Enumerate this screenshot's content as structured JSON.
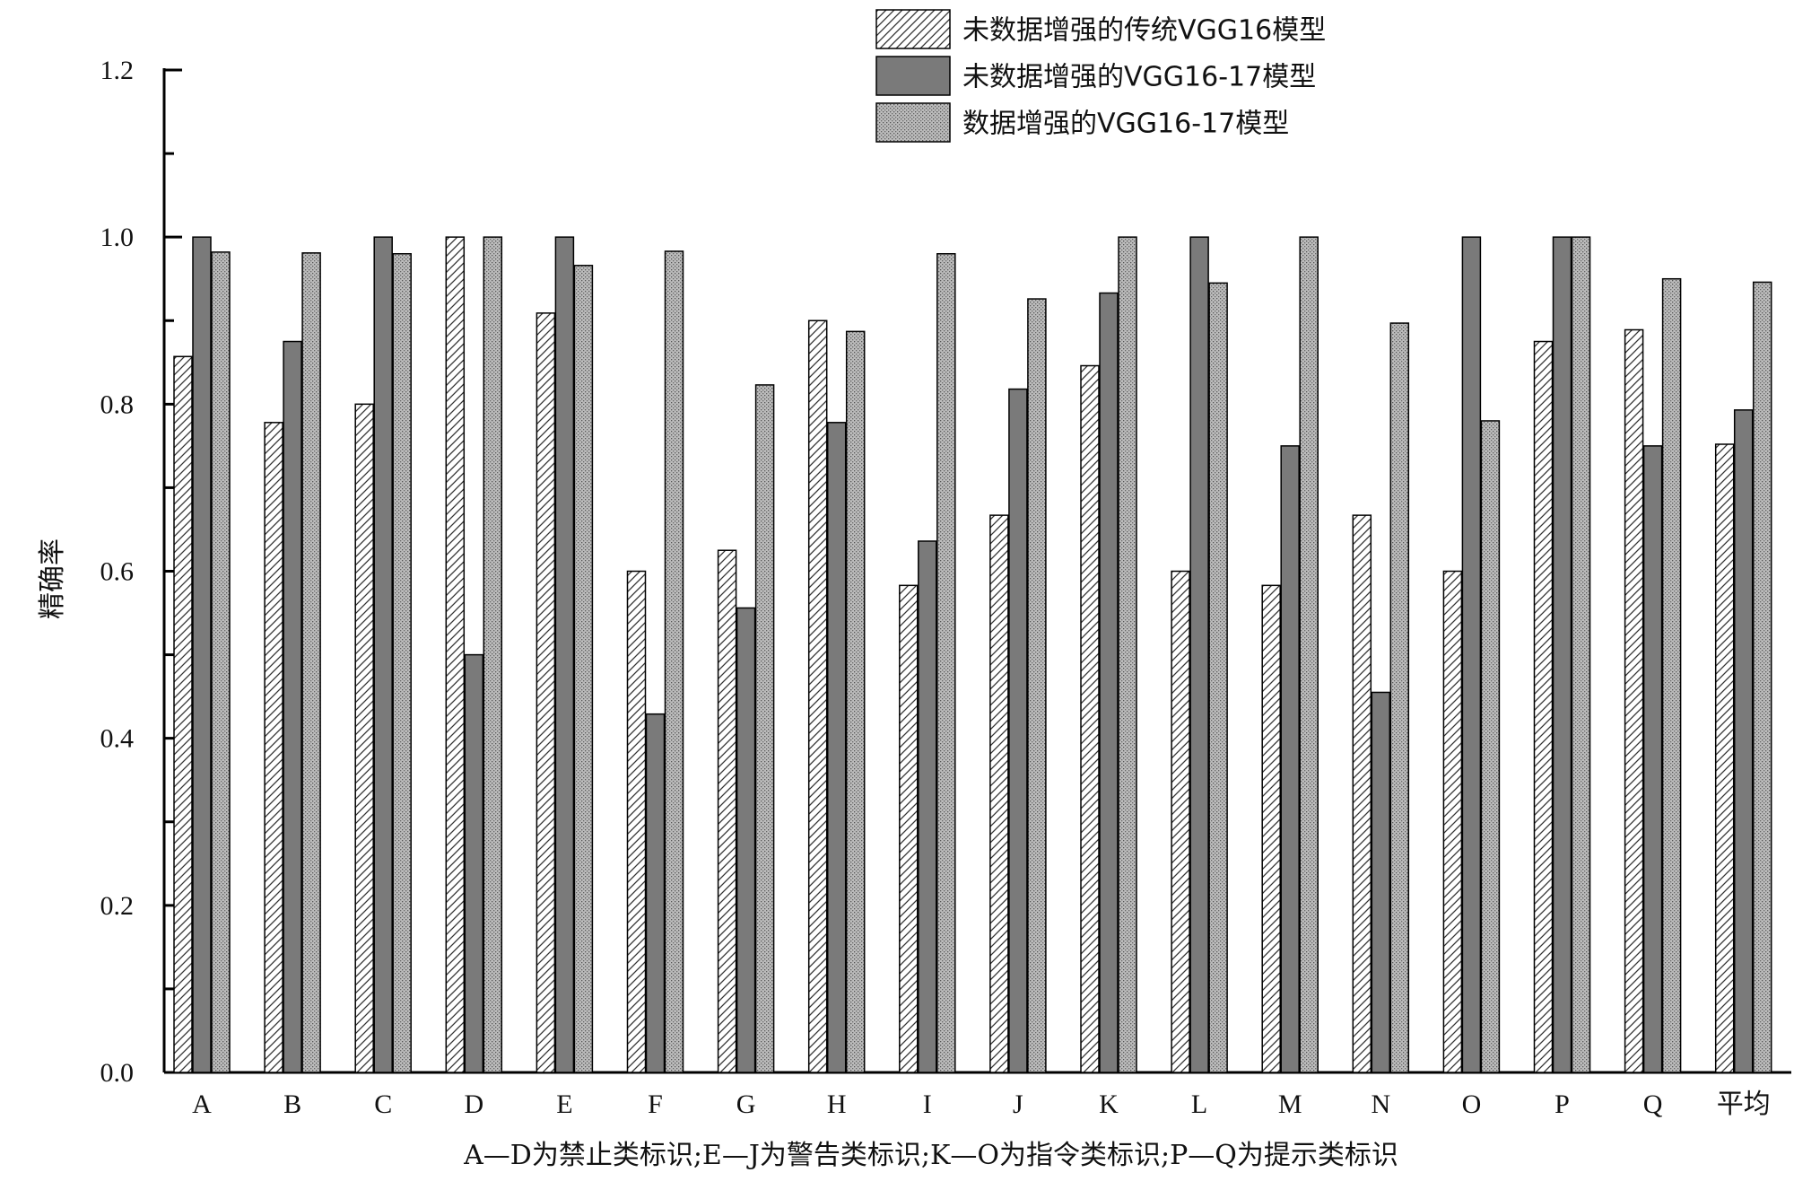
{
  "chart_data": {
    "type": "bar",
    "ylabel": "精确率",
    "xlabel": "",
    "note": "A—D为禁止类标识;E—J为警告类标识;K—O为指令类标识;P—Q为提示类标识",
    "ylim": [
      0.0,
      1.2
    ],
    "yticks": [
      "0.0",
      "0.2",
      "0.4",
      "0.6",
      "0.8",
      "1.0",
      "1.2"
    ],
    "grid": false,
    "legend_position": "top-right",
    "categories": [
      "A",
      "B",
      "C",
      "D",
      "E",
      "F",
      "G",
      "H",
      "I",
      "J",
      "K",
      "L",
      "M",
      "N",
      "O",
      "P",
      "Q",
      "平均"
    ],
    "series": [
      {
        "name": "未数据增强的传统VGG16模型",
        "pattern": "hatch",
        "values": [
          0.857,
          0.778,
          0.8,
          1.0,
          0.909,
          0.6,
          0.625,
          0.9,
          0.583,
          0.667,
          0.846,
          0.6,
          0.583,
          0.667,
          0.6,
          0.875,
          0.889,
          0.752
        ]
      },
      {
        "name": "未数据增强的VGG16-17模型",
        "pattern": "dark",
        "color": "#7a7a7a",
        "values": [
          1.0,
          0.875,
          1.0,
          0.5,
          1.0,
          0.429,
          0.556,
          0.778,
          0.636,
          0.818,
          0.933,
          1.0,
          0.75,
          0.455,
          1.0,
          1.0,
          0.75,
          0.793
        ]
      },
      {
        "name": "数据增强的VGG16-17模型",
        "pattern": "dots",
        "color": "#b4b4b4",
        "values": [
          0.982,
          0.981,
          0.98,
          1.0,
          0.966,
          0.983,
          0.823,
          0.887,
          0.98,
          0.926,
          1.0,
          0.945,
          1.0,
          0.897,
          0.78,
          1.0,
          0.95,
          0.946
        ]
      }
    ]
  }
}
